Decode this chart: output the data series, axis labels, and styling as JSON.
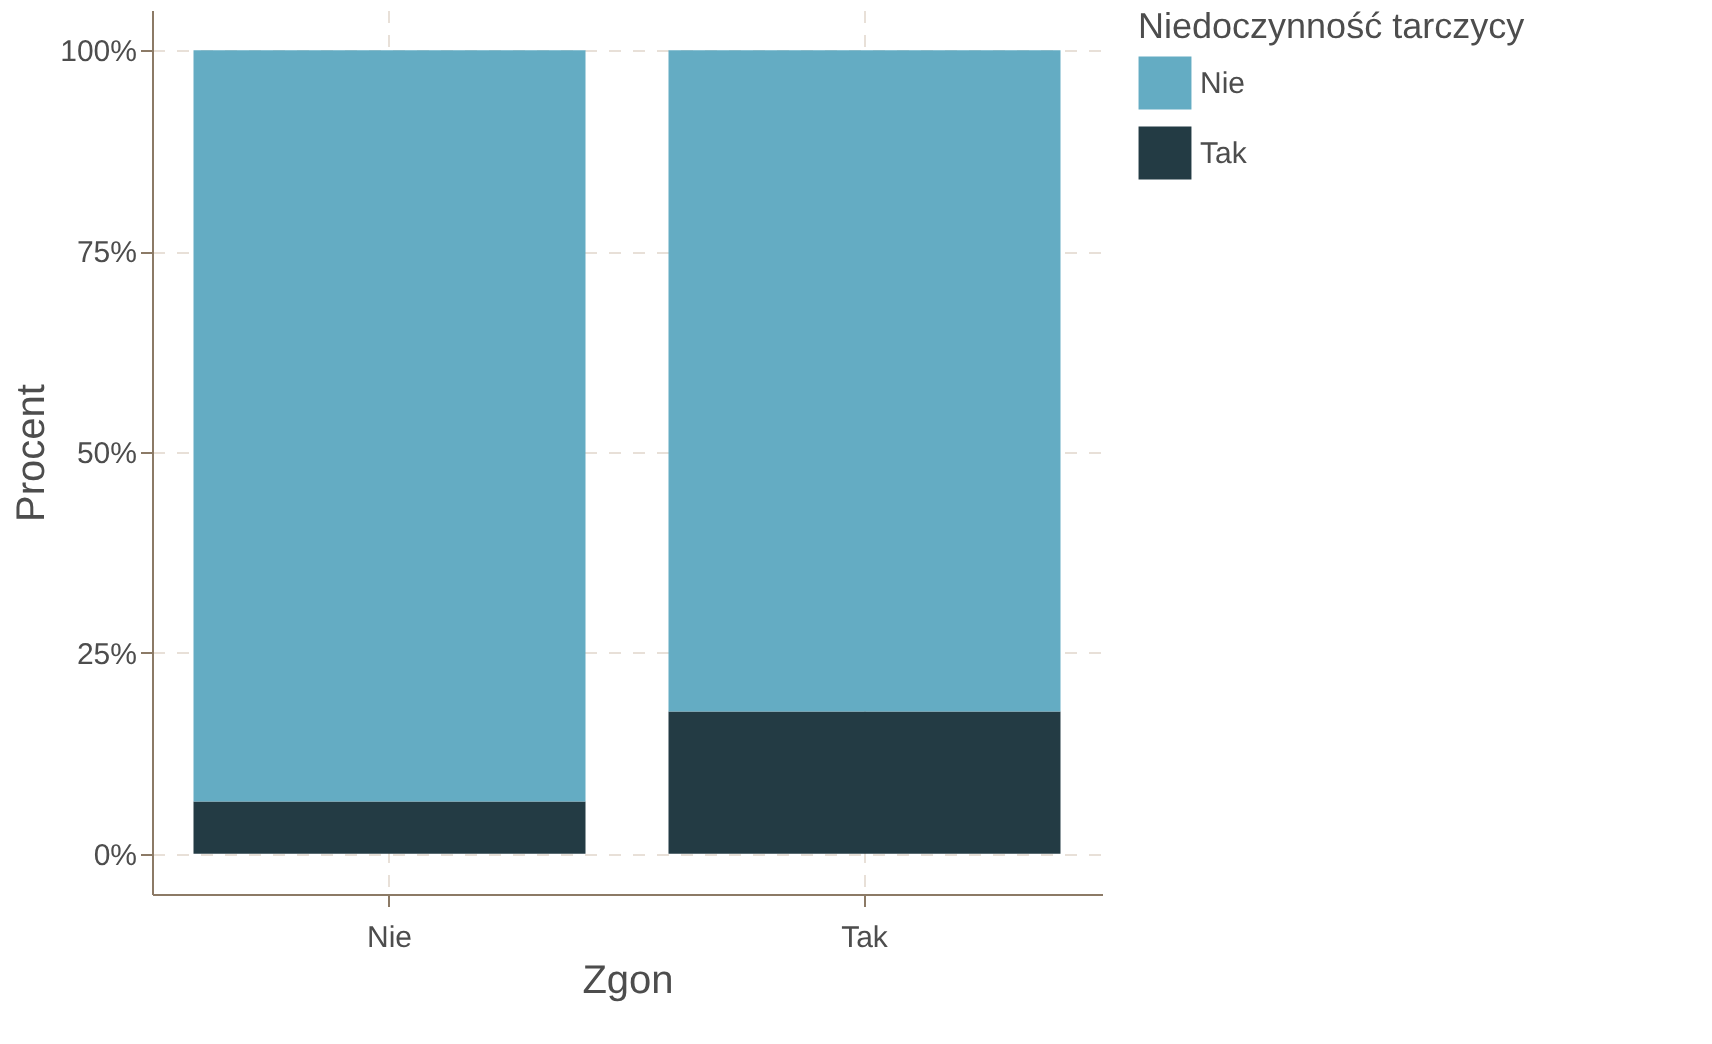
{
  "chart_data": {
    "type": "bar",
    "stacked": true,
    "xlabel": "Zgon",
    "ylabel": "Procent",
    "legend_title": "Niedoczynność tarczycy",
    "categories": [
      "Nie",
      "Tak"
    ],
    "series": [
      {
        "name": "Tak",
        "color": "#233b44",
        "values": [
          6.5,
          17.7
        ]
      },
      {
        "name": "Nie",
        "color": "#64acc3",
        "values": [
          93.5,
          82.3
        ]
      }
    ],
    "ylim": [
      -5,
      105
    ],
    "yticks": [
      {
        "value": 0,
        "label": "0%"
      },
      {
        "value": 25,
        "label": "25%"
      },
      {
        "value": 50,
        "label": "50%"
      },
      {
        "value": 75,
        "label": "75%"
      },
      {
        "value": 100,
        "label": "100%"
      }
    ],
    "grid": true,
    "legend": "right"
  }
}
